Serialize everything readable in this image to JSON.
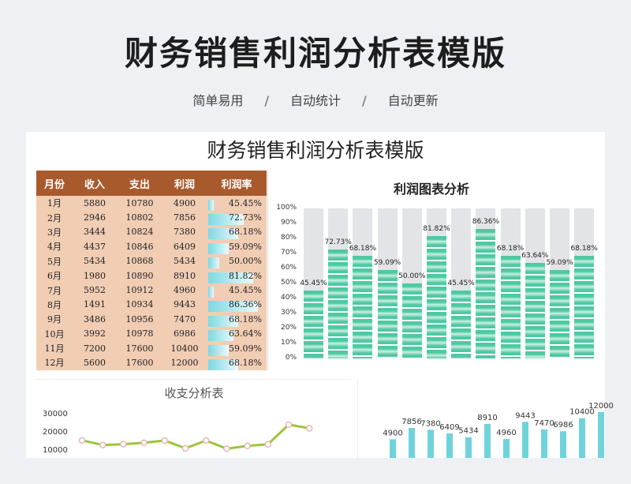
{
  "hero": {
    "title": "财务销售利润分析表模版",
    "tags": [
      "简单易用",
      "自动统计",
      "自动更新"
    ],
    "sep": "/"
  },
  "sheet": {
    "title": "财务销售利润分析表模版"
  },
  "table": {
    "headers": [
      "月份",
      "收入",
      "支出",
      "利润",
      "利润率"
    ],
    "rows": [
      {
        "month": "1月",
        "income": "5880",
        "expense": "10780",
        "profit": "4900",
        "rate": "45.45%"
      },
      {
        "month": "2月",
        "income": "2946",
        "expense": "10802",
        "profit": "7856",
        "rate": "72.73%"
      },
      {
        "month": "3月",
        "income": "3444",
        "expense": "10824",
        "profit": "7380",
        "rate": "68.18%"
      },
      {
        "month": "4月",
        "income": "4437",
        "expense": "10846",
        "profit": "6409",
        "rate": "59.09%"
      },
      {
        "month": "5月",
        "income": "5434",
        "expense": "10868",
        "profit": "5434",
        "rate": "50.00%"
      },
      {
        "month": "6月",
        "income": "1980",
        "expense": "10890",
        "profit": "8910",
        "rate": "81.82%"
      },
      {
        "month": "7月",
        "income": "5952",
        "expense": "10912",
        "profit": "4960",
        "rate": "45.45%"
      },
      {
        "month": "8月",
        "income": "1491",
        "expense": "10934",
        "profit": "9443",
        "rate": "86.36%"
      },
      {
        "month": "9月",
        "income": "3486",
        "expense": "10956",
        "profit": "7470",
        "rate": "68.18%"
      },
      {
        "month": "10月",
        "income": "3992",
        "expense": "10978",
        "profit": "6986",
        "rate": "63.64%"
      },
      {
        "month": "11月",
        "income": "7200",
        "expense": "17600",
        "profit": "10400",
        "rate": "59.09%"
      },
      {
        "month": "12月",
        "income": "5600",
        "expense": "17600",
        "profit": "12000",
        "rate": "68.18%"
      }
    ],
    "bar_color": "#7dd8e3",
    "header_color": "#a85a2d",
    "body_color": "#f1cdb4"
  },
  "chart_data": [
    {
      "type": "bar",
      "title": "利润图表分析",
      "values": [
        45.45,
        72.73,
        68.18,
        59.09,
        50.0,
        81.82,
        45.45,
        86.36,
        68.18,
        63.64,
        59.09,
        68.18
      ],
      "labels": [
        "45.45%",
        "72.73%",
        "68.18%",
        "59.09%",
        "50.00%",
        "81.82%",
        "45.45%",
        "86.36%",
        "68.18%",
        "63.64%",
        "59.09%",
        "68.18%"
      ],
      "yticks": [
        "100%",
        "90%",
        "80%",
        "70%",
        "60%",
        "50%",
        "40%",
        "30%",
        "20%",
        "10%",
        "0%"
      ],
      "ylim": [
        0,
        100
      ],
      "fill_color": "#4ec9a2",
      "bg_color": "#e2e4e7"
    },
    {
      "type": "line",
      "title": "收支分析表",
      "yticks": [
        "30000",
        "20000",
        "10000"
      ],
      "series": [
        {
          "values": [
            16500,
            14000,
            14400,
            15200,
            16400,
            12200,
            16400,
            12000,
            13500,
            14400,
            25000,
            23000
          ]
        }
      ],
      "line_color": "#9dc53b",
      "marker_color": "#e8b4b8"
    },
    {
      "type": "bar",
      "values": [
        4900,
        7856,
        7380,
        6409,
        5434,
        8910,
        4960,
        9443,
        7470,
        6986,
        10400,
        12000
      ],
      "labels": [
        "4900",
        "7856",
        "7380",
        "6409",
        "5434",
        "8910",
        "4960",
        "9443",
        "7470",
        "6986",
        "10400",
        "12000"
      ],
      "fill_color": "#6fd3dc"
    }
  ]
}
